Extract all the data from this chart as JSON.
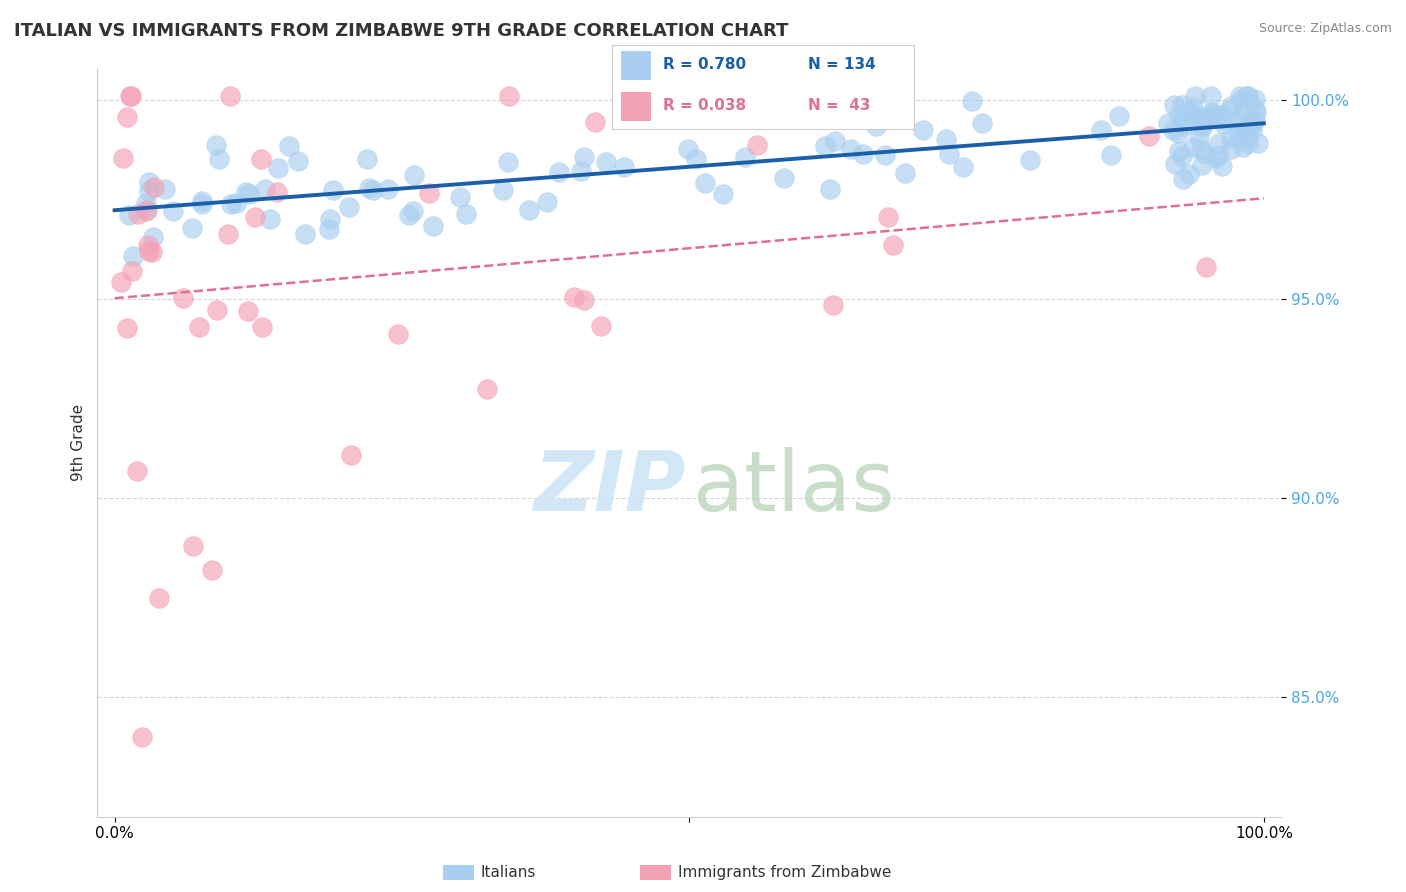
{
  "title": "ITALIAN VS IMMIGRANTS FROM ZIMBABWE 9TH GRADE CORRELATION CHART",
  "source_text": "Source: ZipAtlas.com",
  "ylabel": "9th Grade",
  "legend_r_italian": "R = 0.780",
  "legend_n_italian": "N = 134",
  "legend_r_zim": "R = 0.038",
  "legend_n_zim": "N =  43",
  "italian_color": "#a8cff0",
  "zim_color": "#f4a0b5",
  "italian_line_color": "#1a5fa8",
  "zim_line_color": "#e07090",
  "watermark_zip_color": "#cce4f5",
  "watermark_atlas_color": "#b8d4b8",
  "background_color": "#ffffff",
  "grid_color": "#cccccc"
}
